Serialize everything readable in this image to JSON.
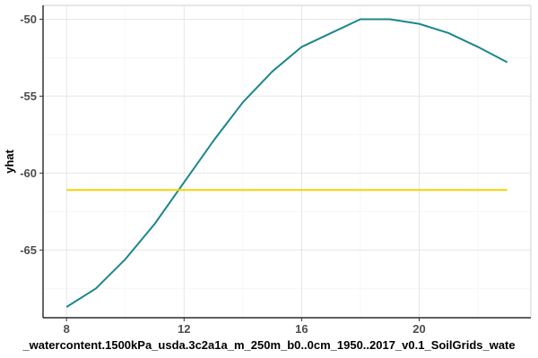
{
  "chart_data": {
    "type": "line",
    "title": "",
    "xlabel": "_watercontent.1500kPa_usda.3c2a1a_m_250m_b0..0cm_1950..2017_v0.1_SoilGrids_wate",
    "ylabel": "yhat",
    "xlim": [
      7.2,
      23.8
    ],
    "ylim": [
      -69.4,
      -49.1
    ],
    "x_ticks": [
      8,
      12,
      16,
      20
    ],
    "y_ticks": [
      -50,
      -55,
      -60,
      -65
    ],
    "x_tick_labels": [
      "8",
      "12",
      "16",
      "20"
    ],
    "y_tick_labels": [
      "-50",
      "-55",
      "-60",
      "-65"
    ],
    "grid": true,
    "legend": "none",
    "series": [
      {
        "color": "#1b878b",
        "x": [
          8,
          9,
          10,
          11,
          12,
          13,
          14,
          15,
          16,
          17,
          18,
          19,
          20,
          21,
          22,
          23
        ],
        "y": [
          -68.7,
          -67.5,
          -65.6,
          -63.3,
          -60.6,
          -57.9,
          -55.4,
          -53.4,
          -51.8,
          -50.9,
          -50.0,
          -50.0,
          -50.3,
          -50.9,
          -51.8,
          -52.8
        ]
      },
      {
        "color": "#f5d20a",
        "x": [
          8,
          23
        ],
        "y": [
          -61.1,
          -61.1
        ]
      }
    ]
  }
}
